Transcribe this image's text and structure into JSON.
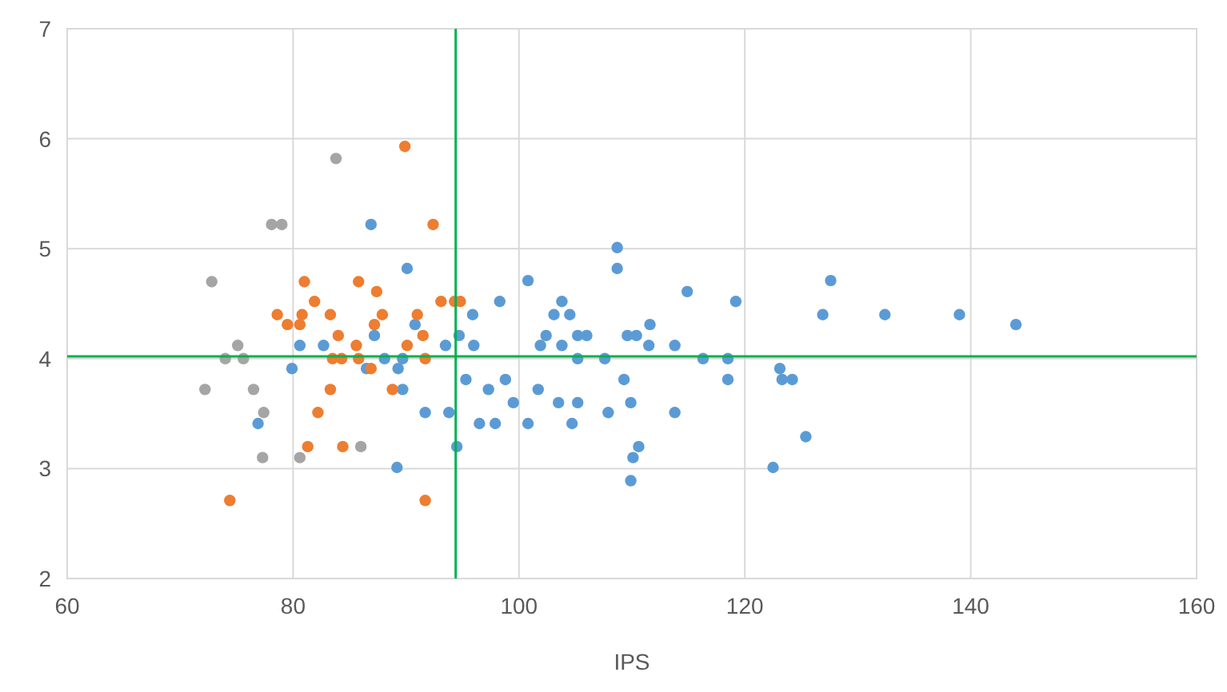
{
  "chart_data": {
    "type": "scatter",
    "xlabel": "IPS",
    "xlim": [
      60,
      160
    ],
    "xticks": [
      60,
      80,
      100,
      120,
      140,
      160
    ],
    "ylim": [
      2,
      7
    ],
    "yticks": [
      2,
      3,
      4,
      5,
      6,
      7
    ],
    "grid": true,
    "marker": "circle",
    "ref_lines": [
      {
        "axis": "x",
        "value": 94.4,
        "color": "#00b050"
      },
      {
        "axis": "y",
        "value": 4.02,
        "color": "#00b050"
      }
    ],
    "series": [
      {
        "color": "#5b9bd5",
        "x": [
          86.9,
          90.1,
          95.9,
          90.8,
          87.2,
          94.7,
          80.6,
          82.7,
          93.5,
          96.0,
          79.9,
          88.1,
          89.7,
          86.5,
          89.3,
          89.7,
          95.3,
          97.3,
          91.7,
          93.8,
          96.5,
          76.9,
          94.5,
          89.2,
          108.7,
          108.7,
          100.8,
          114.9,
          119.2,
          98.3,
          103.8,
          103.1,
          104.5,
          111.6,
          102.4,
          105.2,
          106.0,
          109.6,
          110.4,
          101.9,
          103.8,
          111.5,
          113.8,
          105.2,
          107.6,
          116.3,
          118.5,
          98.8,
          118.5,
          109.3,
          101.7,
          99.5,
          103.5,
          105.2,
          109.9,
          97.9,
          100.8,
          104.7,
          107.9,
          113.8,
          110.6,
          110.1,
          109.9,
          122.5,
          127.6,
          126.9,
          132.4,
          139.0,
          144.0,
          123.1,
          123.3,
          124.2,
          125.4
        ],
        "values": [
          5.22,
          4.82,
          4.4,
          4.31,
          4.21,
          4.21,
          4.12,
          4.12,
          4.12,
          4.12,
          3.91,
          4.0,
          4.0,
          3.91,
          3.91,
          3.72,
          3.81,
          3.72,
          3.51,
          3.51,
          3.41,
          3.41,
          3.2,
          3.01,
          5.01,
          4.82,
          4.71,
          4.61,
          4.52,
          4.52,
          4.52,
          4.4,
          4.4,
          4.31,
          4.21,
          4.21,
          4.21,
          4.21,
          4.21,
          4.12,
          4.12,
          4.12,
          4.12,
          4.0,
          4.0,
          4.0,
          4.0,
          3.81,
          3.81,
          3.81,
          3.72,
          3.6,
          3.6,
          3.6,
          3.6,
          3.41,
          3.41,
          3.41,
          3.51,
          3.51,
          3.2,
          3.1,
          2.89,
          3.01,
          4.71,
          4.4,
          4.4,
          4.4,
          4.31,
          3.91,
          3.81,
          3.81,
          3.29
        ]
      },
      {
        "color": "#ed7d31",
        "x": [
          89.9,
          92.4,
          81.0,
          85.8,
          87.4,
          81.9,
          93.1,
          94.3,
          94.8,
          78.6,
          80.8,
          83.3,
          87.9,
          91.0,
          79.5,
          80.6,
          87.2,
          84.0,
          91.5,
          85.6,
          90.1,
          83.5,
          84.3,
          85.8,
          91.7,
          86.9,
          83.3,
          88.8,
          82.2,
          81.3,
          84.4,
          74.4,
          91.7
        ],
        "values": [
          5.93,
          5.22,
          4.7,
          4.7,
          4.61,
          4.52,
          4.52,
          4.52,
          4.52,
          4.4,
          4.4,
          4.4,
          4.4,
          4.4,
          4.31,
          4.31,
          4.31,
          4.21,
          4.21,
          4.12,
          4.12,
          4.0,
          4.0,
          4.0,
          4.0,
          3.91,
          3.72,
          3.72,
          3.51,
          3.2,
          3.2,
          2.71,
          2.71
        ]
      },
      {
        "color": "#a5a5a5",
        "x": [
          83.8,
          78.1,
          79.0,
          72.8,
          75.1,
          74.0,
          75.6,
          72.2,
          76.5,
          77.4,
          77.3,
          80.6,
          86.0
        ],
        "values": [
          5.82,
          5.22,
          5.22,
          4.7,
          4.12,
          4.0,
          4.0,
          3.72,
          3.72,
          3.51,
          3.1,
          3.1,
          3.2
        ]
      }
    ]
  }
}
